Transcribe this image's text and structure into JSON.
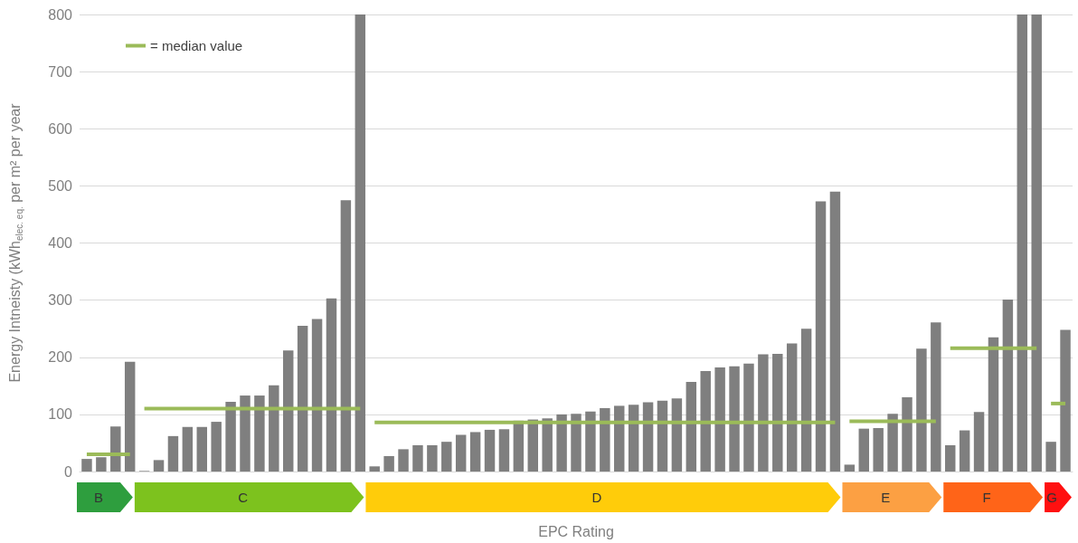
{
  "chart_data": {
    "type": "bar",
    "xlabel": "EPC Rating",
    "ylabel": "Energy Intneisty (kWh$_{elec. eq.}$ per m² per year",
    "categories": [
      null,
      null,
      null,
      null,
      null,
      null,
      null,
      null,
      null,
      null,
      null,
      null,
      null,
      null,
      null,
      null,
      null,
      null,
      null,
      null,
      null,
      null,
      null,
      null,
      null,
      null,
      null,
      null,
      null,
      null,
      null,
      null,
      null,
      null,
      null,
      null,
      null,
      null,
      null,
      null,
      null,
      null,
      null,
      null,
      null,
      null,
      null,
      null,
      null,
      null,
      null,
      null,
      null,
      null,
      null,
      null,
      null,
      null,
      null,
      null,
      null,
      null,
      null,
      null,
      null,
      null,
      null,
      null,
      null
    ],
    "ylim": [
      0,
      800
    ],
    "yticks": [
      0,
      100,
      200,
      300,
      400,
      500,
      600,
      700,
      800
    ],
    "grid": "y",
    "tick_labels": "y",
    "legend": "top left",
    "series": [
      {
        "color": "#7f7f7f",
        "values": [
          22,
          25,
          79,
          192,
          1,
          20,
          62,
          78,
          78,
          87,
          122,
          133,
          133,
          151,
          212,
          255,
          267,
          303,
          475,
          800,
          9,
          27,
          39,
          46,
          46,
          52,
          64,
          69,
          73,
          74,
          89,
          91,
          93,
          100,
          101,
          105,
          111,
          115,
          117,
          121,
          124,
          128,
          157,
          176,
          182,
          184,
          189,
          205,
          206,
          224,
          250,
          473,
          490,
          12,
          75,
          76,
          101,
          130,
          215,
          261,
          46,
          72,
          104,
          235,
          301,
          800,
          800,
          52,
          248
        ]
      },
      {
        "type": "line",
        "name": "= median value",
        "color": "#9bbb59",
        "values": [
          30,
          30,
          30,
          30,
          110,
          110,
          110,
          110,
          110,
          110,
          110,
          110,
          110,
          110,
          110,
          110,
          110,
          110,
          110,
          110,
          86,
          86,
          86,
          86,
          86,
          86,
          86,
          86,
          86,
          86,
          86,
          86,
          86,
          86,
          86,
          86,
          86,
          86,
          86,
          86,
          86,
          86,
          86,
          86,
          86,
          86,
          86,
          86,
          86,
          86,
          86,
          86,
          86,
          88,
          88,
          88,
          88,
          88,
          88,
          88,
          216,
          216,
          216,
          216,
          216,
          216,
          216,
          119,
          119
        ]
      }
    ],
    "annotations": [
      "B",
      "C",
      "D",
      "E",
      "F",
      "G"
    ]
  }
}
